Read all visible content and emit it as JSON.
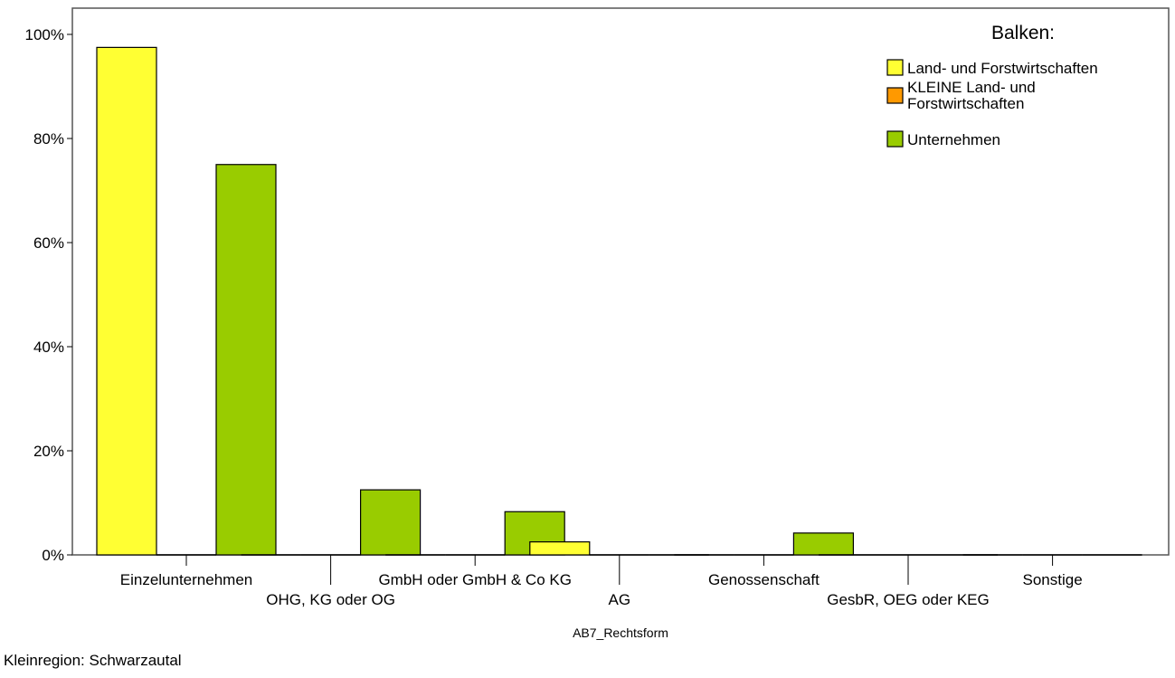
{
  "chart_data": {
    "type": "bar",
    "xlabel": "AB7_Rechtsform",
    "ylabel": "",
    "ylim": [
      0,
      100
    ],
    "y_ticks": [
      "0%",
      "20%",
      "40%",
      "60%",
      "80%",
      "100%"
    ],
    "grid": false,
    "legend_position": "top-right",
    "legend_title": "Balken:",
    "categories": [
      "Einzelunternehmen",
      "OHG, KG oder OG",
      "GmbH oder GmbH & Co KG",
      "AG",
      "Genossenschaft",
      "GesbR, OEG oder KEG",
      "Sonstige"
    ],
    "series": [
      {
        "name": "Land- und Forstwirtschaften",
        "color": "#ffff33",
        "values": [
          97.5,
          0,
          0,
          2.5,
          0,
          0,
          0
        ]
      },
      {
        "name": "KLEINE Land- und Forstwirtschaften",
        "color": "#ff9900",
        "values": [
          0,
          0,
          0,
          0,
          0,
          0,
          0
        ]
      },
      {
        "name": "Unternehmen",
        "color": "#99cc00",
        "values": [
          75,
          12.5,
          8.3,
          0,
          4.2,
          0,
          0
        ]
      }
    ]
  },
  "footnote": "Kleinregion: Schwarzautal"
}
